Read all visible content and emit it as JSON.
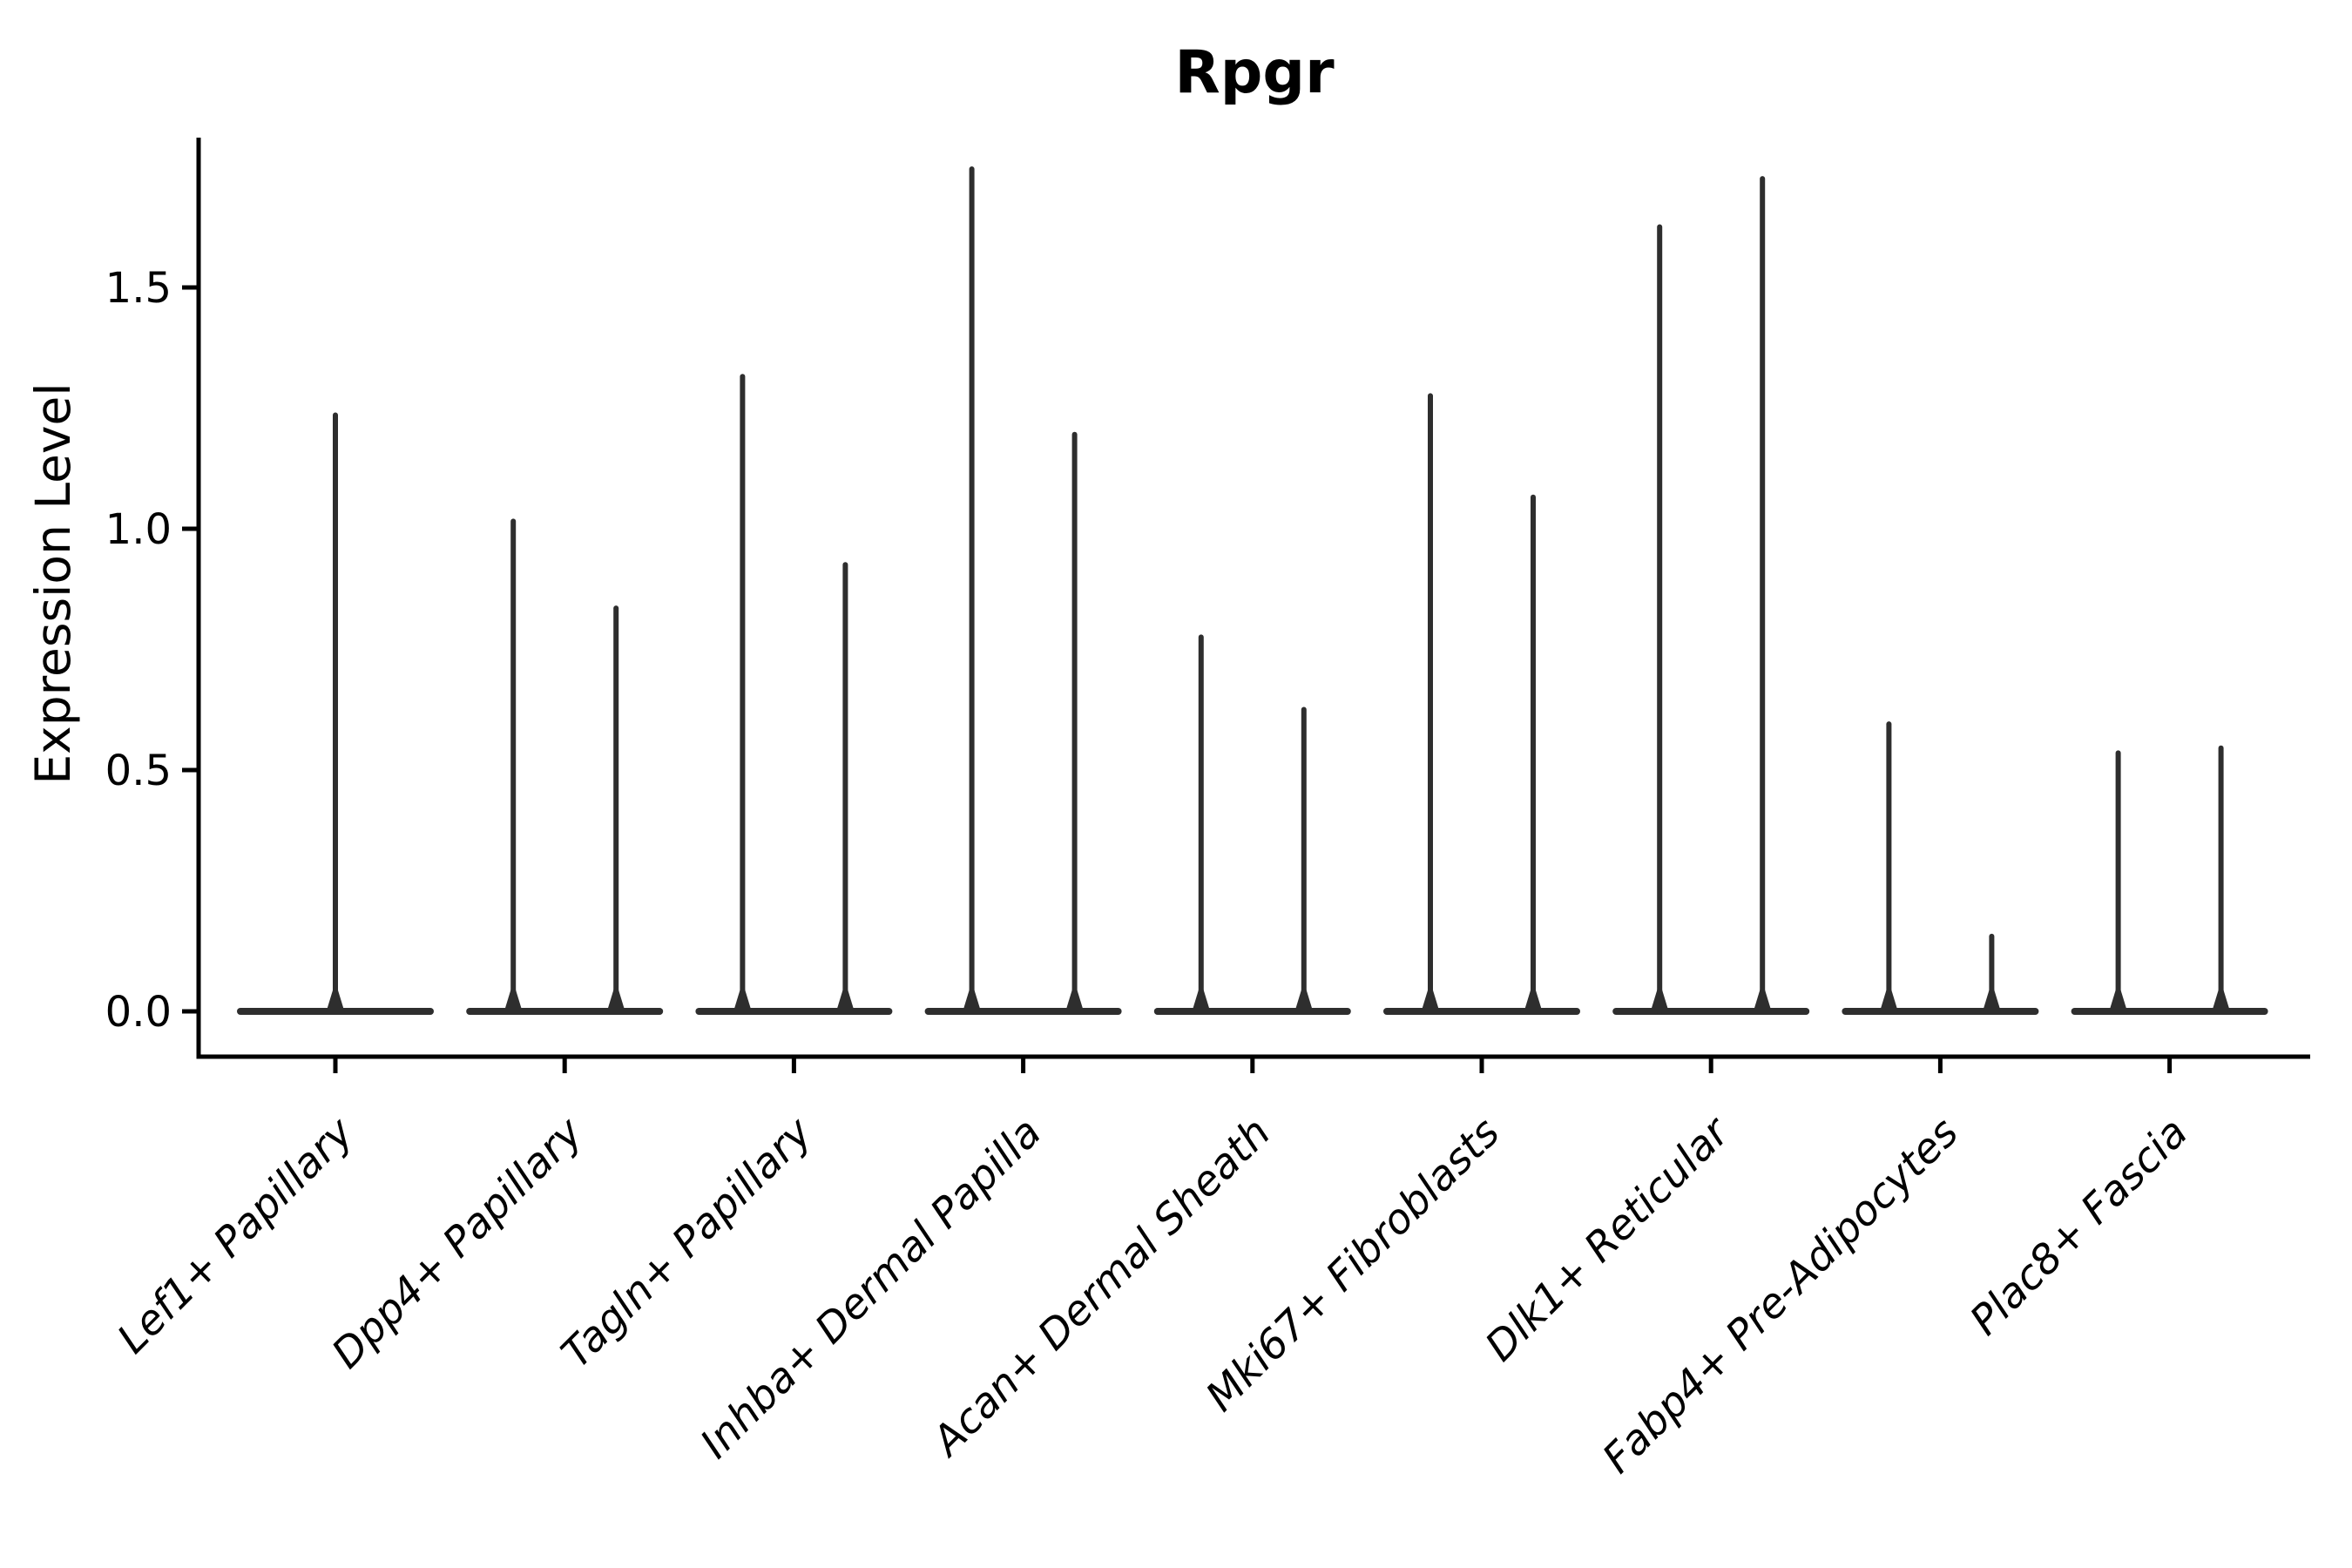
{
  "chart_data": {
    "type": "violin",
    "title": "Rpgr",
    "ylabel": "Expression Level",
    "xlabel": "",
    "ylim": [
      0,
      1.8
    ],
    "yticks": [
      0.0,
      0.5,
      1.0,
      1.5
    ],
    "ytick_labels": [
      "0.0",
      "0.5",
      "1.0",
      "1.5"
    ],
    "grid": "off",
    "legend": "none",
    "categories": [
      "Lef1+ Papillary",
      "Dpp4+ Papillary",
      "Tagln+ Papillary",
      "Inhba+ Dermal Papilla",
      "Acan+ Dermal Sheath",
      "Mki67+ Fibroblasts",
      "Dlk1+ Reticular",
      "Fabp4+ Pre-Adipocytes",
      "Plac8+ Fascia"
    ],
    "violins": [
      {
        "category": "Lef1+ Papillary",
        "spike_maxima": [
          1.24
        ]
      },
      {
        "category": "Dpp4+ Papillary",
        "spike_maxima": [
          1.02,
          0.84
        ]
      },
      {
        "category": "Tagln+ Papillary",
        "spike_maxima": [
          1.32,
          0.93
        ]
      },
      {
        "category": "Inhba+ Dermal Papilla",
        "spike_maxima": [
          1.75,
          1.2
        ]
      },
      {
        "category": "Acan+ Dermal Sheath",
        "spike_maxima": [
          0.78,
          0.63
        ]
      },
      {
        "category": "Mki67+ Fibroblasts",
        "spike_maxima": [
          1.28,
          1.07
        ]
      },
      {
        "category": "Dlk1+ Reticular",
        "spike_maxima": [
          1.63,
          1.73
        ]
      },
      {
        "category": "Fabp4+ Pre-Adipocytes",
        "spike_maxima": [
          0.6,
          0.16
        ]
      },
      {
        "category": "Plac8+ Fascia",
        "spike_maxima": [
          0.54,
          0.55
        ]
      }
    ],
    "baseline_value": 0.0,
    "colors": {
      "violin_line": "#2e2e2e",
      "axis": "#000000",
      "text": "#000000",
      "background": "#ffffff"
    }
  }
}
